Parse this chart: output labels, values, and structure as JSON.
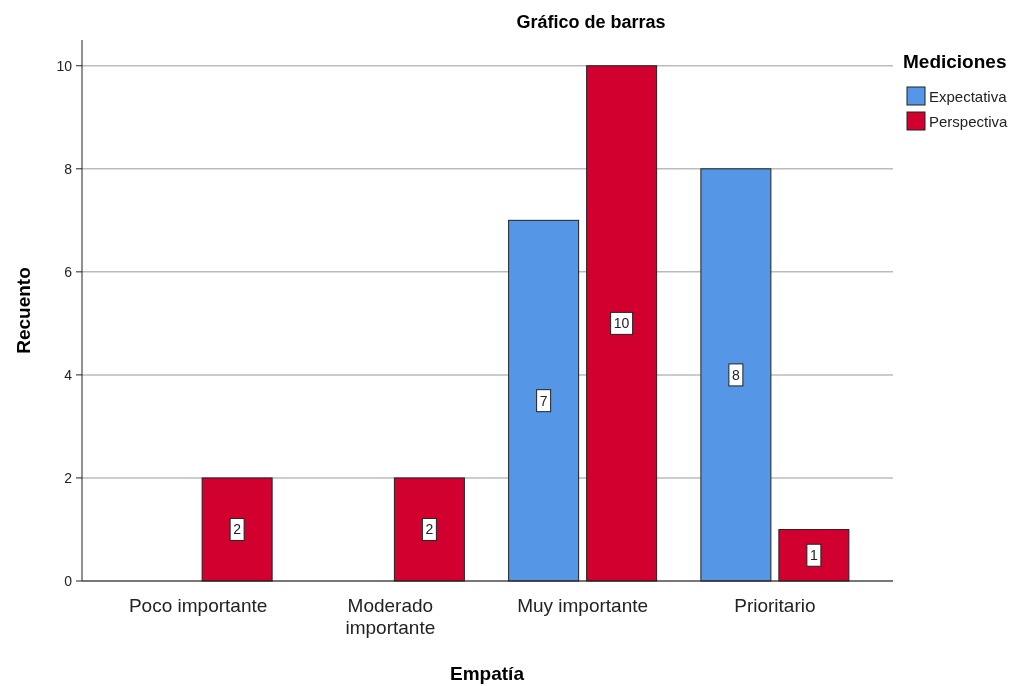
{
  "chart_data": {
    "type": "bar",
    "title": "Gráfico de barras",
    "xlabel": "Empatía",
    "ylabel": "Recuento",
    "legend_title": "Mediciones",
    "categories": [
      "Poco importante",
      "Moderado importante",
      "Muy importante",
      "Prioritario"
    ],
    "series": [
      {
        "name": "Expectativa",
        "color": "#5596e6",
        "values": [
          null,
          null,
          7,
          8
        ]
      },
      {
        "name": "Perspectiva",
        "color": "#d2002e",
        "values": [
          2,
          2,
          10,
          1
        ]
      }
    ],
    "ylim": [
      0,
      10.5
    ],
    "yticks": [
      0,
      2,
      4,
      6,
      8,
      10
    ],
    "grid": "y",
    "legend": "top right",
    "data_labels": true
  }
}
